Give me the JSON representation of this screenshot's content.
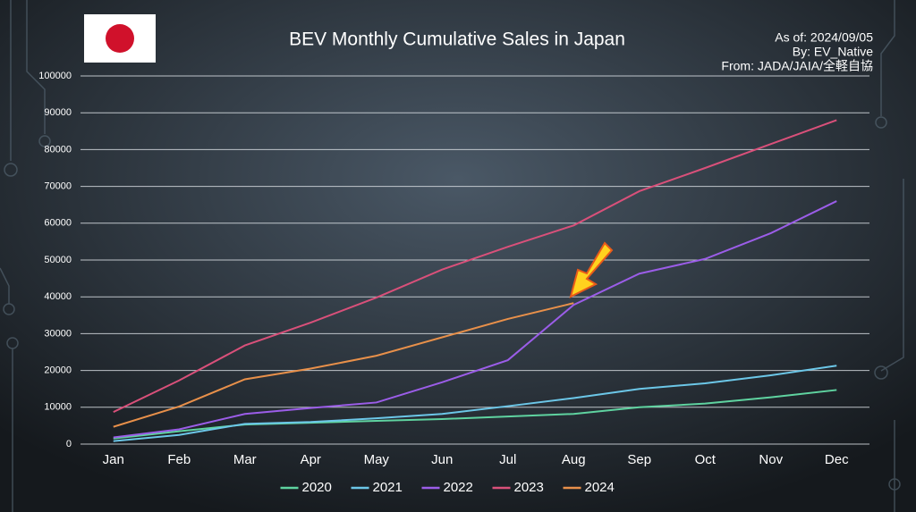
{
  "chart_data": {
    "type": "line",
    "title": "BEV Monthly Cumulative Sales in Japan",
    "annotations": [
      "As of: 2024/09/05",
      "By: EV_Native",
      "From: JADA/JAIA/全軽自協"
    ],
    "categories": [
      "Jan",
      "Feb",
      "Mar",
      "Apr",
      "May",
      "Jun",
      "Jul",
      "Aug",
      "Sep",
      "Oct",
      "Nov",
      "Dec"
    ],
    "series": [
      {
        "name": "2020",
        "color": "#5fd3a0",
        "values": [
          1500,
          3500,
          5300,
          5800,
          6300,
          6800,
          7500,
          8200,
          10000,
          11000,
          12700,
          14700
        ]
      },
      {
        "name": "2021",
        "color": "#6cc7e8",
        "values": [
          800,
          2500,
          5500,
          6000,
          7000,
          8200,
          10300,
          12500,
          15000,
          16500,
          18700,
          21300
        ]
      },
      {
        "name": "2022",
        "color": "#9b5de8",
        "values": [
          1800,
          4000,
          8200,
          9800,
          11300,
          16800,
          22800,
          37800,
          46300,
          50300,
          57300,
          66000
        ]
      },
      {
        "name": "2023",
        "color": "#d9507a",
        "values": [
          8700,
          17300,
          26800,
          33000,
          39800,
          47400,
          53600,
          59400,
          68700,
          75000,
          81500,
          88000
        ]
      },
      {
        "name": "2024",
        "color": "#e8904a",
        "values": [
          4700,
          10200,
          17600,
          20500,
          24000,
          29000,
          34000,
          38300,
          null,
          null,
          null,
          null
        ]
      }
    ],
    "ylim": [
      0,
      100000
    ],
    "yticks": [
      0,
      10000,
      20000,
      30000,
      40000,
      50000,
      60000,
      70000,
      80000,
      90000,
      100000
    ],
    "grid": true,
    "legend": "bottom"
  }
}
